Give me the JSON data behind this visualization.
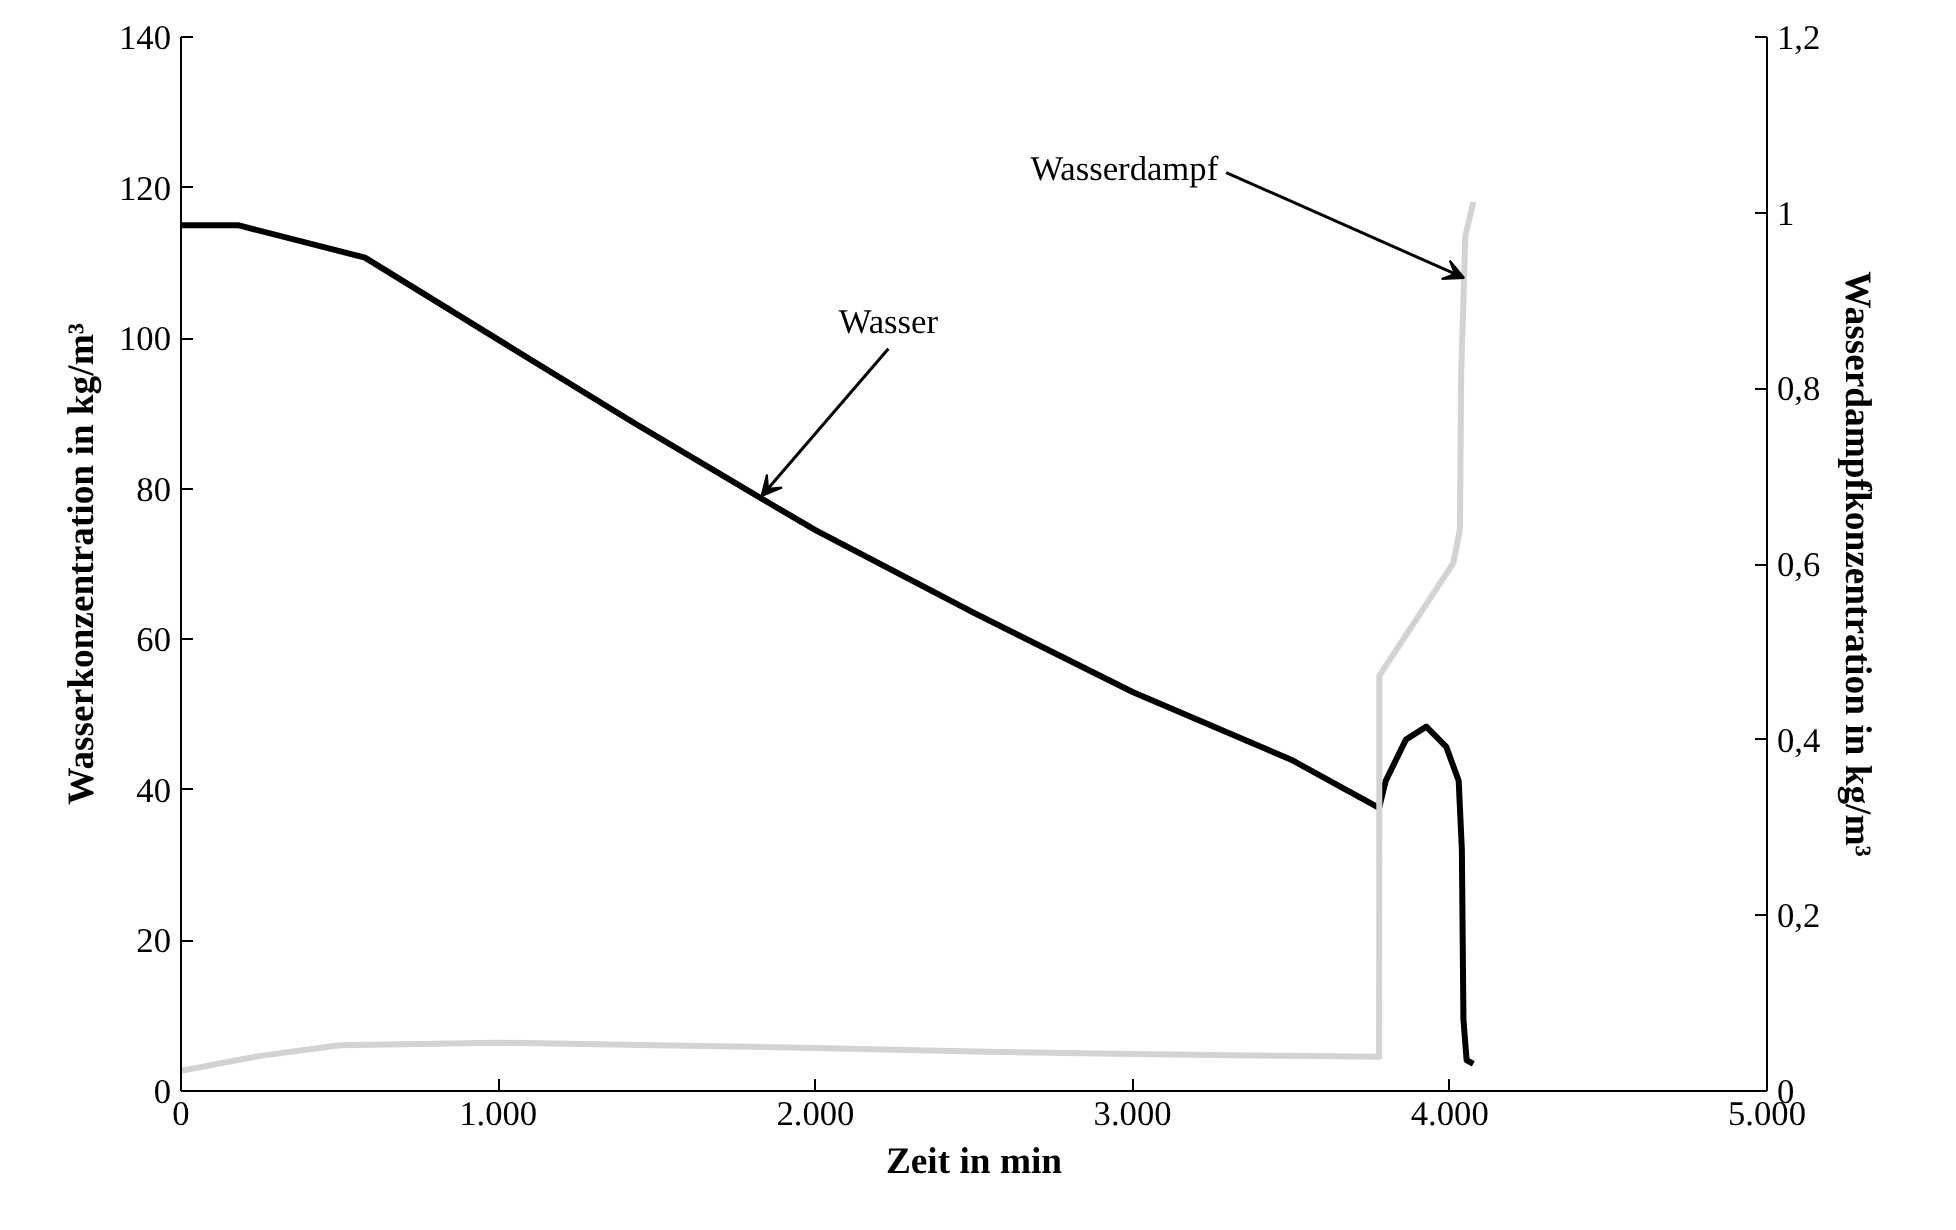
{
  "chart_data": {
    "type": "line",
    "xlabel": "Zeit in min",
    "ylabel": "Wasserkonzentration in kg/m³",
    "y2label": "Wasserdampfkonzentration in kg/m³",
    "xlim": [
      0,
      5000
    ],
    "xticks": [
      0,
      {
        "value": 1000,
        "label": "1.000"
      },
      {
        "value": 2000,
        "label": "2.000"
      },
      {
        "value": 3000,
        "label": "3.000"
      },
      {
        "value": 4000,
        "label": "4.000"
      },
      {
        "value": 5000,
        "label": "5.000"
      }
    ],
    "ylim": [
      0,
      140
    ],
    "yticks": [
      0,
      20,
      40,
      60,
      80,
      100,
      120,
      140
    ],
    "y2lim": [
      0,
      1.2
    ],
    "y2ticks": [
      0,
      {
        "value": 0.2,
        "label": "0,2"
      },
      {
        "value": 0.4,
        "label": "0,4"
      },
      {
        "value": 0.6,
        "label": "0,6"
      },
      {
        "value": 0.8,
        "label": "0,8"
      },
      1,
      {
        "value": 1.2,
        "label": "1,2"
      }
    ],
    "grid": false,
    "marker": "none",
    "line_style": "solid",
    "series": [
      {
        "color": "#000000",
        "x": [
          0,
          180,
          580,
          1000,
          1430,
          1850,
          2000,
          2500,
          3000,
          3500,
          3777,
          3798,
          3862,
          3926,
          3989,
          4028,
          4038,
          4043,
          4053,
          4074
        ],
        "values": [
          115,
          115,
          110.7,
          99.8,
          88.7,
          78.2,
          74.5,
          63.5,
          53,
          44,
          37.6,
          41.2,
          46.7,
          48.4,
          45.7,
          41.2,
          32.1,
          9.5,
          4.1,
          3.6
        ]
      },
      {
        "color": "#d3d3d3",
        "axis": "y2",
        "x": [
          0,
          250,
          500,
          1000,
          1500,
          2000,
          2500,
          3000,
          3500,
          3777,
          3778,
          4011,
          4032,
          4036,
          4049,
          4074
        ],
        "values": [
          0.023,
          0.04,
          0.052,
          0.055,
          0.052,
          0.049,
          0.045,
          0.042,
          0.04,
          0.039,
          0.473,
          0.601,
          0.64,
          0.818,
          0.973,
          1.012
        ]
      }
    ],
    "annotations": [
      {
        "text": "Wasser",
        "x": 1830,
        "y": 79
      },
      {
        "text": "Wasserdampf",
        "x": 4045,
        "y": 108
      }
    ]
  }
}
